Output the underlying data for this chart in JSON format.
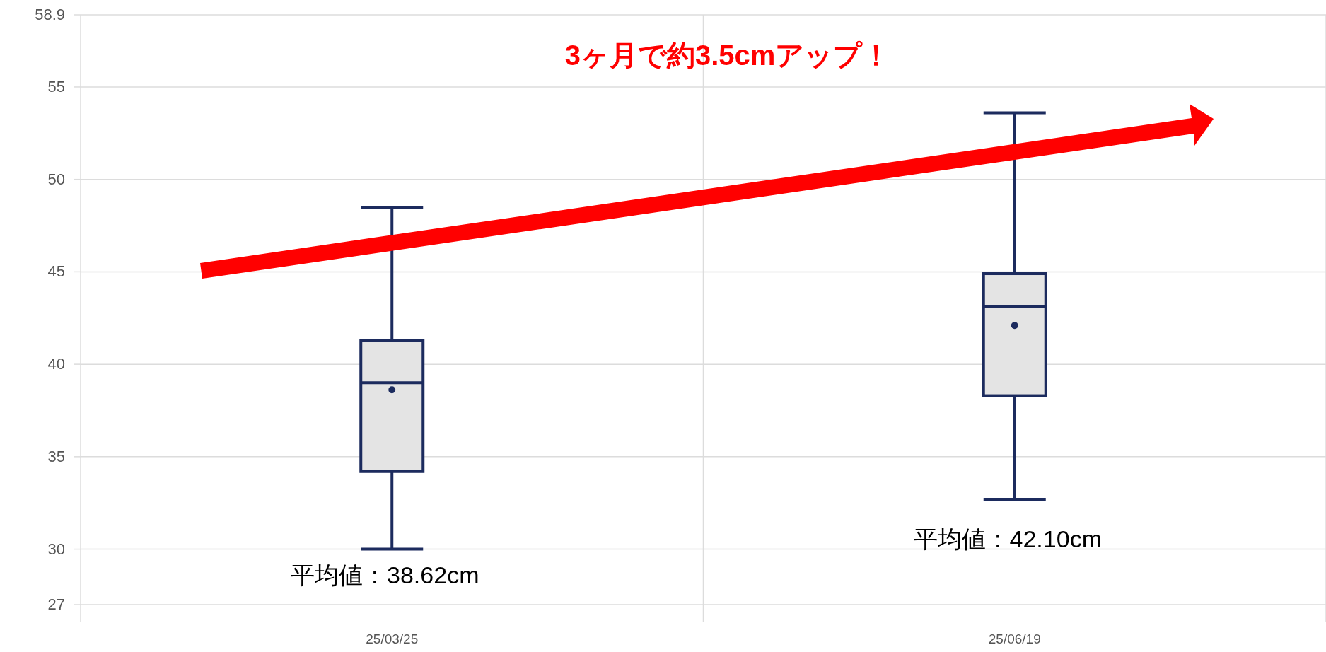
{
  "chart_data": {
    "type": "box",
    "title": "3ヶ月で約3.5cmアップ！",
    "categories": [
      "25/03/25",
      "25/06/19"
    ],
    "series": [
      {
        "color": "#1c2b5e",
        "boxes": [
          {
            "low": 30,
            "q1": 34.2,
            "median": 39.0,
            "q3": 41.3,
            "high": 48.5,
            "mean": 38.62
          },
          {
            "low": 32.7,
            "q1": 38.3,
            "median": 43.1,
            "q3": 44.9,
            "high": 53.6,
            "mean": 42.1
          }
        ]
      }
    ],
    "ylim": [
      27,
      58.9
    ],
    "yticks": [
      27,
      30,
      35,
      40,
      45,
      50,
      55,
      58.9
    ],
    "grid": true,
    "annotations": [
      "平均値：38.62cm",
      "平均値：42.10cm"
    ]
  }
}
